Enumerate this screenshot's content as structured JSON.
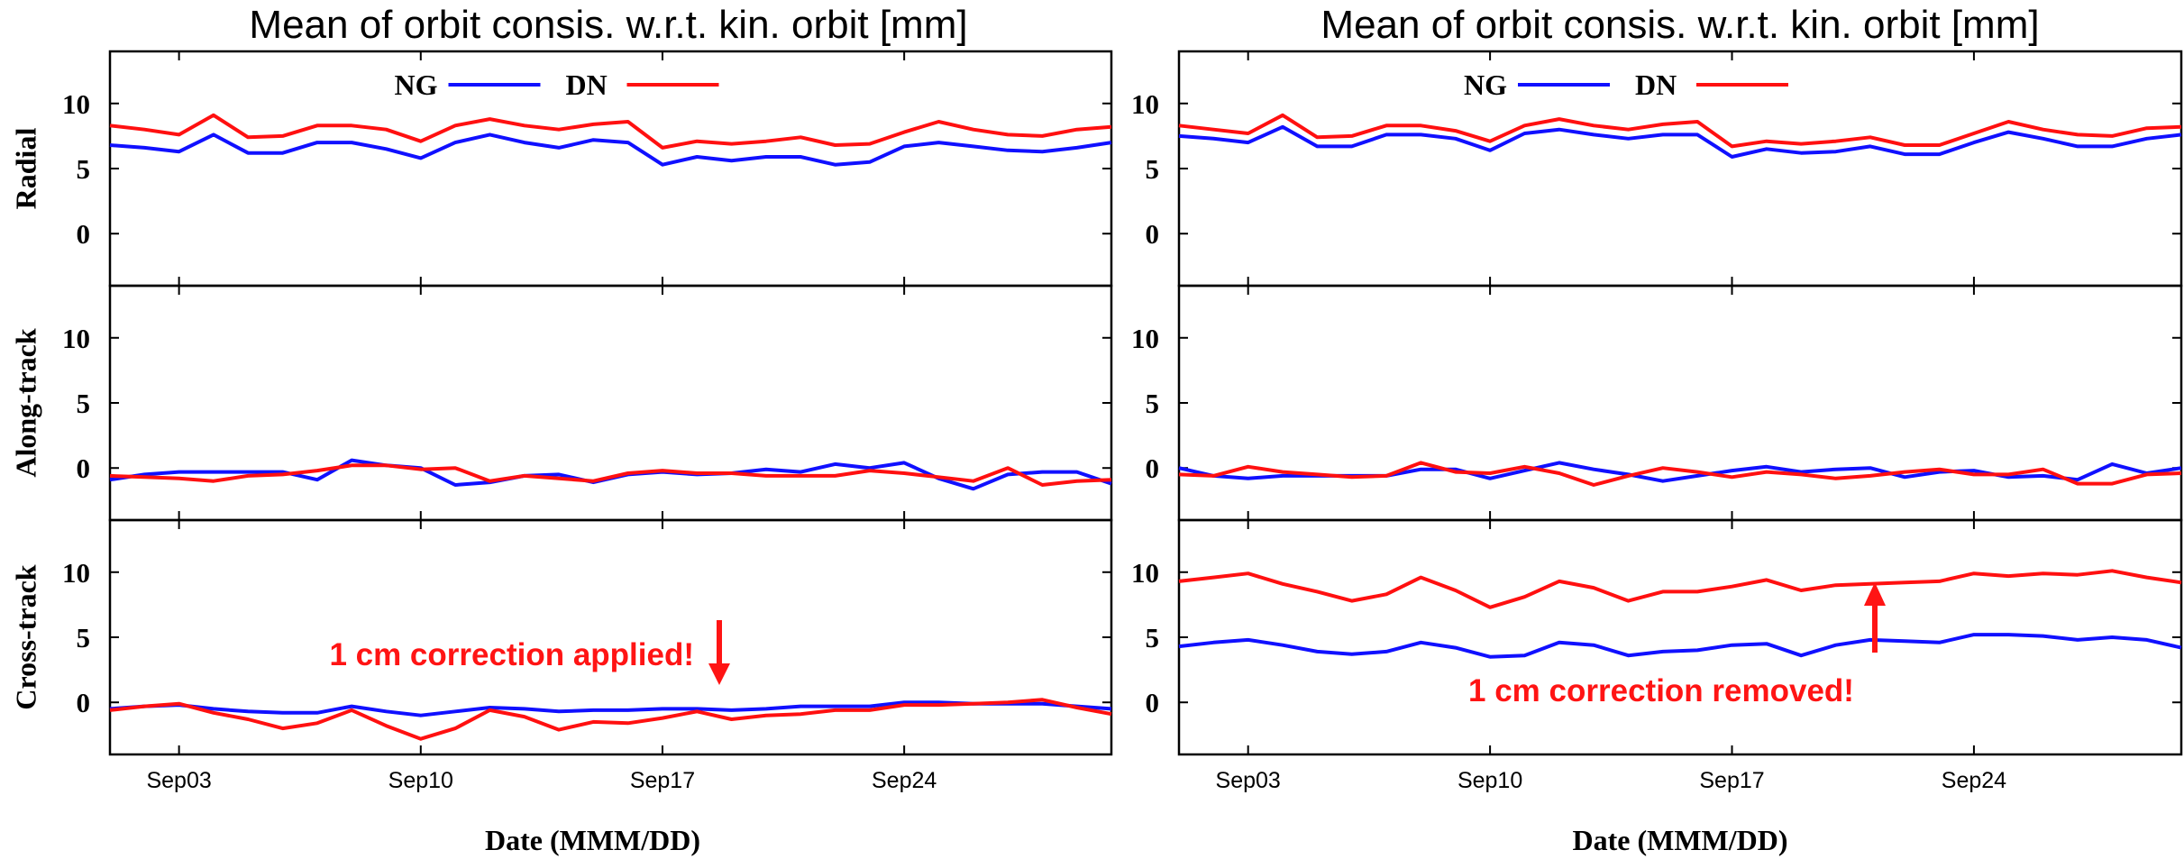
{
  "chart_data": [
    {
      "type": "line",
      "title": "Mean of orbit consis. w.r.t. kin. orbit [mm]",
      "xlabel": "Date (MMM/DD)",
      "x_tick_labels": [
        "Sep03",
        "Sep10",
        "Sep17",
        "Sep24"
      ],
      "x_ticks": [
        "2019-09-03",
        "2019-09-10",
        "2019-09-17",
        "2019-09-24"
      ],
      "x": [
        "2019-09-01",
        "2019-09-02",
        "2019-09-03",
        "2019-09-04",
        "2019-09-05",
        "2019-09-06",
        "2019-09-07",
        "2019-09-08",
        "2019-09-09",
        "2019-09-10",
        "2019-09-11",
        "2019-09-12",
        "2019-09-13",
        "2019-09-14",
        "2019-09-15",
        "2019-09-16",
        "2019-09-17",
        "2019-09-18",
        "2019-09-19",
        "2019-09-20",
        "2019-09-21",
        "2019-09-22",
        "2019-09-23",
        "2019-09-24",
        "2019-09-25",
        "2019-09-26",
        "2019-09-27",
        "2019-09-28",
        "2019-09-29",
        "2019-09-30"
      ],
      "xlim": [
        "2019-09-01",
        "2019-09-30"
      ],
      "legend": {
        "placement": "top-center",
        "entries": [
          {
            "name": "NG",
            "color": "#1010ff"
          },
          {
            "name": "DN",
            "color": "#ff1010"
          }
        ]
      },
      "annotation": {
        "text": "1 cm correction applied!",
        "color": "#ff1414",
        "arrow": "down",
        "panel": "Cross-track"
      },
      "panels": [
        {
          "ylabel": "Radial",
          "yticks": [
            "0",
            "5",
            "10"
          ],
          "ylim": [
            -4,
            14
          ],
          "series": [
            {
              "name": "NG",
              "color": "#1010ff",
              "values": [
                6.8,
                6.6,
                6.3,
                7.6,
                6.2,
                6.2,
                7.0,
                7.0,
                6.5,
                5.8,
                7.0,
                7.6,
                7.0,
                6.6,
                7.2,
                7.0,
                5.3,
                5.9,
                5.6,
                5.9,
                5.9,
                5.3,
                5.5,
                6.7,
                7.0,
                6.7,
                6.4,
                6.3,
                6.6,
                7.0
              ]
            },
            {
              "name": "DN",
              "color": "#ff1010",
              "values": [
                8.3,
                8.0,
                7.6,
                9.1,
                7.4,
                7.5,
                8.3,
                8.3,
                8.0,
                7.1,
                8.3,
                8.8,
                8.3,
                8.0,
                8.4,
                8.6,
                6.6,
                7.1,
                6.9,
                7.1,
                7.4,
                6.8,
                6.9,
                7.8,
                8.6,
                8.0,
                7.6,
                7.5,
                8.0,
                8.2
              ]
            }
          ]
        },
        {
          "ylabel": "Along-track",
          "yticks": [
            "0",
            "5",
            "10"
          ],
          "ylim": [
            -4,
            14
          ],
          "series": [
            {
              "name": "NG",
              "color": "#1010ff",
              "values": [
                -0.9,
                -0.5,
                -0.3,
                -0.3,
                -0.3,
                -0.3,
                -0.9,
                0.6,
                0.2,
                0.0,
                -1.3,
                -1.1,
                -0.6,
                -0.5,
                -1.1,
                -0.5,
                -0.3,
                -0.5,
                -0.4,
                -0.1,
                -0.3,
                0.3,
                0.0,
                0.4,
                -0.8,
                -1.6,
                -0.5,
                -0.3,
                -0.3,
                -1.2
              ]
            },
            {
              "name": "DN",
              "color": "#ff1010",
              "values": [
                -0.6,
                -0.7,
                -0.8,
                -1.0,
                -0.6,
                -0.5,
                -0.2,
                0.2,
                0.2,
                -0.1,
                0.0,
                -1.0,
                -0.6,
                -0.8,
                -1.0,
                -0.4,
                -0.2,
                -0.4,
                -0.4,
                -0.6,
                -0.6,
                -0.6,
                -0.2,
                -0.4,
                -0.7,
                -1.0,
                0.0,
                -1.3,
                -1.0,
                -0.9
              ]
            }
          ]
        },
        {
          "ylabel": "Cross-track",
          "yticks": [
            "0",
            "5",
            "10"
          ],
          "ylim": [
            -4,
            14
          ],
          "series": [
            {
              "name": "NG",
              "color": "#1010ff",
              "values": [
                -0.5,
                -0.3,
                -0.2,
                -0.5,
                -0.7,
                -0.8,
                -0.8,
                -0.3,
                -0.7,
                -1.0,
                -0.7,
                -0.4,
                -0.5,
                -0.7,
                -0.6,
                -0.6,
                -0.5,
                -0.5,
                -0.6,
                -0.5,
                -0.3,
                -0.3,
                -0.3,
                0.0,
                0.0,
                -0.1,
                -0.1,
                -0.1,
                -0.3,
                -0.5
              ]
            },
            {
              "name": "DN",
              "color": "#ff1010",
              "values": [
                -0.6,
                -0.3,
                -0.1,
                -0.8,
                -1.3,
                -2.0,
                -1.6,
                -0.6,
                -1.8,
                -2.8,
                -2.0,
                -0.6,
                -1.1,
                -2.1,
                -1.5,
                -1.6,
                -1.2,
                -0.7,
                -1.3,
                -1.0,
                -0.9,
                -0.6,
                -0.6,
                -0.2,
                -0.2,
                -0.1,
                0.0,
                0.2,
                -0.4,
                -0.9
              ]
            }
          ]
        }
      ]
    },
    {
      "type": "line",
      "title": "Mean of orbit consis. w.r.t. kin. orbit [mm]",
      "xlabel": "Date (MMM/DD)",
      "x_tick_labels": [
        "Sep03",
        "Sep10",
        "Sep17",
        "Sep24"
      ],
      "x_ticks": [
        "2019-09-03",
        "2019-09-10",
        "2019-09-17",
        "2019-09-24"
      ],
      "x": [
        "2019-09-01",
        "2019-09-02",
        "2019-09-03",
        "2019-09-04",
        "2019-09-05",
        "2019-09-06",
        "2019-09-07",
        "2019-09-08",
        "2019-09-09",
        "2019-09-10",
        "2019-09-11",
        "2019-09-12",
        "2019-09-13",
        "2019-09-14",
        "2019-09-15",
        "2019-09-16",
        "2019-09-17",
        "2019-09-18",
        "2019-09-19",
        "2019-09-20",
        "2019-09-21",
        "2019-09-22",
        "2019-09-23",
        "2019-09-24",
        "2019-09-25",
        "2019-09-26",
        "2019-09-27",
        "2019-09-28",
        "2019-09-29",
        "2019-09-30"
      ],
      "xlim": [
        "2019-09-01",
        "2019-09-30"
      ],
      "legend": {
        "placement": "top-center",
        "entries": [
          {
            "name": "NG",
            "color": "#1010ff"
          },
          {
            "name": "DN",
            "color": "#ff1010"
          }
        ]
      },
      "annotation": {
        "text": "1 cm correction removed!",
        "color": "#ff1414",
        "arrow": "up",
        "panel": "Cross-track"
      },
      "panels": [
        {
          "ylabel": "",
          "yticks": [
            "0",
            "5",
            "10"
          ],
          "ylim": [
            -4,
            14
          ],
          "series": [
            {
              "name": "NG",
              "color": "#1010ff",
              "values": [
                7.5,
                7.3,
                7.0,
                8.2,
                6.7,
                6.7,
                7.6,
                7.6,
                7.3,
                6.4,
                7.7,
                8.0,
                7.6,
                7.3,
                7.6,
                7.6,
                5.9,
                6.5,
                6.2,
                6.3,
                6.7,
                6.1,
                6.1,
                7.0,
                7.8,
                7.3,
                6.7,
                6.7,
                7.3,
                7.6
              ]
            },
            {
              "name": "DN",
              "color": "#ff1010",
              "values": [
                8.3,
                8.0,
                7.7,
                9.1,
                7.4,
                7.5,
                8.3,
                8.3,
                7.9,
                7.1,
                8.3,
                8.8,
                8.3,
                8.0,
                8.4,
                8.6,
                6.7,
                7.1,
                6.9,
                7.1,
                7.4,
                6.8,
                6.8,
                7.7,
                8.6,
                8.0,
                7.6,
                7.5,
                8.1,
                8.2
              ]
            }
          ]
        },
        {
          "ylabel": "",
          "yticks": [
            "0",
            "5",
            "10"
          ],
          "ylim": [
            -4,
            14
          ],
          "series": [
            {
              "name": "NG",
              "color": "#1010ff",
              "values": [
                0.0,
                -0.6,
                -0.8,
                -0.6,
                -0.6,
                -0.6,
                -0.6,
                -0.1,
                -0.1,
                -0.8,
                -0.2,
                0.4,
                -0.1,
                -0.5,
                -1.0,
                -0.6,
                -0.2,
                0.1,
                -0.3,
                -0.1,
                0.0,
                -0.7,
                -0.3,
                -0.2,
                -0.7,
                -0.6,
                -0.9,
                0.3,
                -0.4,
                0.0
              ]
            },
            {
              "name": "DN",
              "color": "#ff1010",
              "values": [
                -0.5,
                -0.6,
                0.1,
                -0.3,
                -0.5,
                -0.7,
                -0.6,
                0.4,
                -0.3,
                -0.4,
                0.1,
                -0.4,
                -1.3,
                -0.6,
                0.0,
                -0.3,
                -0.7,
                -0.3,
                -0.5,
                -0.8,
                -0.6,
                -0.3,
                -0.1,
                -0.5,
                -0.5,
                -0.1,
                -1.2,
                -1.2,
                -0.5,
                -0.4
              ]
            }
          ]
        },
        {
          "ylabel": "",
          "yticks": [
            "0",
            "5",
            "10"
          ],
          "ylim": [
            -4,
            14
          ],
          "series": [
            {
              "name": "NG",
              "color": "#1010ff",
              "values": [
                4.3,
                4.6,
                4.8,
                4.4,
                3.9,
                3.7,
                3.9,
                4.6,
                4.2,
                3.5,
                3.6,
                4.6,
                4.4,
                3.6,
                3.9,
                4.0,
                4.4,
                4.5,
                3.6,
                4.4,
                4.8,
                4.7,
                4.6,
                5.2,
                5.2,
                5.1,
                4.8,
                5.0,
                4.8,
                4.2
              ]
            },
            {
              "name": "DN",
              "color": "#ff1010",
              "values": [
                9.3,
                9.6,
                9.9,
                9.1,
                8.5,
                7.8,
                8.3,
                9.6,
                8.6,
                7.3,
                8.1,
                9.3,
                8.8,
                7.8,
                8.5,
                8.5,
                8.9,
                9.4,
                8.6,
                9.0,
                9.1,
                9.2,
                9.3,
                9.9,
                9.7,
                9.9,
                9.8,
                10.1,
                9.6,
                9.2
              ]
            }
          ]
        }
      ]
    }
  ]
}
